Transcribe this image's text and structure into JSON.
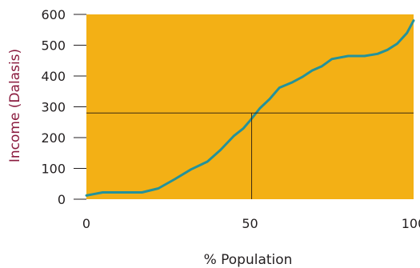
{
  "colors": {
    "plot_bg": "#f3b015",
    "line": "#24929a",
    "ref_lines": "#3b2a12",
    "ylabel": "#8a1b3e"
  },
  "chart_data": {
    "type": "line",
    "xlabel": "% Population",
    "ylabel": "Income (Dalasis)",
    "xlim": [
      0,
      100
    ],
    "ylim": [
      0,
      600
    ],
    "x_ticks": [
      "0",
      "50",
      "100"
    ],
    "y_ticks": [
      "0",
      "100",
      "200",
      "300",
      "400",
      "500",
      "600"
    ],
    "grid": false,
    "reference_lines": {
      "x": 50.5,
      "y": 280
    },
    "series": [
      {
        "x": [
          0,
          2,
          5,
          8,
          12,
          17,
          22,
          27,
          32,
          37,
          41,
          45,
          48,
          50,
          53,
          56,
          59,
          63,
          66,
          69,
          72,
          75,
          80,
          85,
          89,
          92,
          95,
          98,
          100
        ],
        "values": [
          12,
          16,
          22,
          22,
          22,
          22,
          35,
          65,
          97,
          122,
          160,
          205,
          230,
          255,
          295,
          325,
          362,
          380,
          397,
          418,
          432,
          455,
          465,
          465,
          472,
          485,
          505,
          540,
          580
        ]
      }
    ]
  }
}
